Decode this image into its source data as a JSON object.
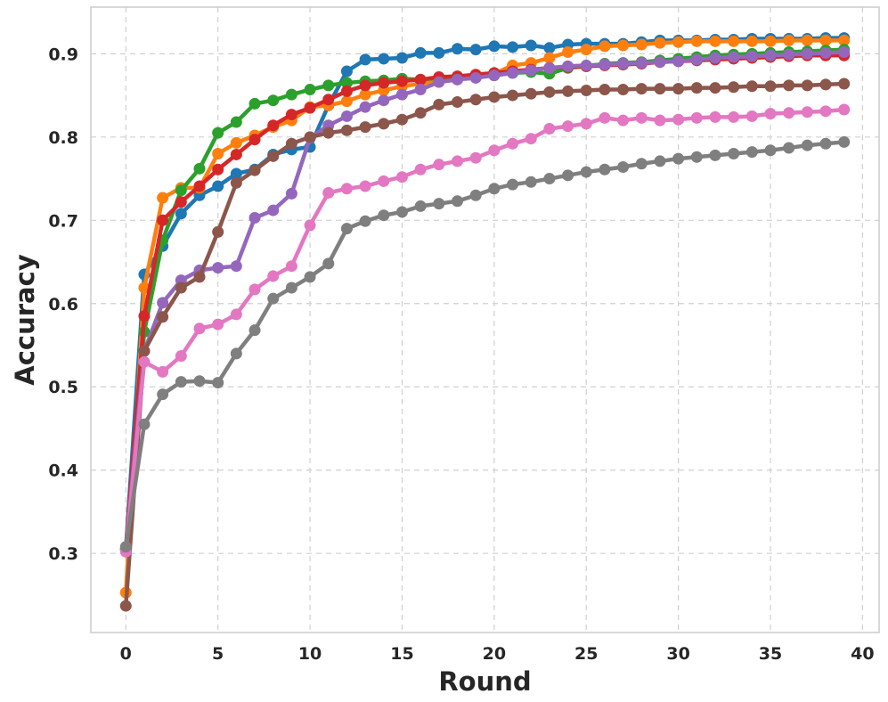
{
  "chart_data": {
    "type": "line",
    "title": "",
    "xlabel": "Round",
    "ylabel": "Accuracy",
    "xlim": [
      -1.9,
      40.9
    ],
    "ylim": [
      0.205,
      0.956
    ],
    "xticks": [
      0,
      5,
      10,
      15,
      20,
      25,
      30,
      35,
      40
    ],
    "yticks": [
      0.3,
      0.4,
      0.5,
      0.6,
      0.7,
      0.8,
      0.9
    ],
    "xtick_labels": [
      "0",
      "5",
      "10",
      "15",
      "20",
      "25",
      "30",
      "35",
      "40"
    ],
    "ytick_labels": [
      "0.3",
      "0.4",
      "0.5",
      "0.6",
      "0.7",
      "0.8",
      "0.9"
    ],
    "grid": true,
    "legend": "none",
    "x": [
      0,
      1,
      2,
      3,
      4,
      5,
      6,
      7,
      8,
      9,
      10,
      11,
      12,
      13,
      14,
      15,
      16,
      17,
      18,
      19,
      20,
      21,
      22,
      23,
      24,
      25,
      26,
      27,
      28,
      29,
      30,
      31,
      32,
      33,
      34,
      35,
      36,
      37,
      38,
      39
    ],
    "series": [
      {
        "name": "series-blue",
        "color": "#1f77b4",
        "values": [
          0.305,
          0.635,
          0.669,
          0.708,
          0.73,
          0.741,
          0.756,
          0.761,
          0.779,
          0.785,
          0.788,
          0.838,
          0.879,
          0.893,
          0.894,
          0.895,
          0.901,
          0.901,
          0.906,
          0.905,
          0.909,
          0.908,
          0.91,
          0.907,
          0.911,
          0.912,
          0.912,
          0.912,
          0.914,
          0.916,
          0.916,
          0.916,
          0.917,
          0.917,
          0.918,
          0.918,
          0.918,
          0.918,
          0.919,
          0.919
        ]
      },
      {
        "name": "series-orange",
        "color": "#ff7f0e",
        "values": [
          0.253,
          0.619,
          0.727,
          0.739,
          0.739,
          0.78,
          0.793,
          0.802,
          0.812,
          0.82,
          0.836,
          0.838,
          0.843,
          0.851,
          0.856,
          0.861,
          0.864,
          0.868,
          0.869,
          0.873,
          0.876,
          0.886,
          0.889,
          0.895,
          0.902,
          0.905,
          0.909,
          0.91,
          0.911,
          0.913,
          0.914,
          0.915,
          0.915,
          0.915,
          0.915,
          0.915,
          0.916,
          0.916,
          0.916,
          0.916
        ]
      },
      {
        "name": "series-green",
        "color": "#2ca02c",
        "values": [
          0.305,
          0.566,
          0.676,
          0.736,
          0.762,
          0.805,
          0.818,
          0.84,
          0.844,
          0.851,
          0.857,
          0.862,
          0.865,
          0.867,
          0.868,
          0.87,
          0.869,
          0.871,
          0.872,
          0.872,
          0.874,
          0.877,
          0.878,
          0.876,
          0.883,
          0.885,
          0.888,
          0.889,
          0.89,
          0.892,
          0.894,
          0.896,
          0.898,
          0.899,
          0.9,
          0.901,
          0.902,
          0.903,
          0.904,
          0.905
        ]
      },
      {
        "name": "series-red",
        "color": "#d62728",
        "values": [
          0.305,
          0.585,
          0.7,
          0.722,
          0.741,
          0.761,
          0.779,
          0.797,
          0.814,
          0.827,
          0.835,
          0.845,
          0.855,
          0.862,
          0.865,
          0.867,
          0.869,
          0.872,
          0.873,
          0.875,
          0.877,
          0.879,
          0.881,
          0.883,
          0.884,
          0.885,
          0.886,
          0.887,
          0.888,
          0.89,
          0.891,
          0.892,
          0.893,
          0.894,
          0.895,
          0.896,
          0.897,
          0.898,
          0.898,
          0.898
        ]
      },
      {
        "name": "series-purple",
        "color": "#9467bd",
        "values": [
          0.305,
          0.543,
          0.601,
          0.628,
          0.64,
          0.643,
          0.645,
          0.703,
          0.712,
          0.732,
          0.799,
          0.814,
          0.825,
          0.836,
          0.844,
          0.851,
          0.857,
          0.866,
          0.869,
          0.871,
          0.874,
          0.877,
          0.88,
          0.883,
          0.885,
          0.886,
          0.887,
          0.888,
          0.889,
          0.89,
          0.891,
          0.893,
          0.895,
          0.896,
          0.897,
          0.898,
          0.899,
          0.9,
          0.901,
          0.902
        ]
      },
      {
        "name": "series-brown",
        "color": "#8c564b",
        "values": [
          0.237,
          0.543,
          0.584,
          0.619,
          0.632,
          0.686,
          0.745,
          0.76,
          0.777,
          0.792,
          0.8,
          0.805,
          0.808,
          0.812,
          0.816,
          0.821,
          0.829,
          0.839,
          0.842,
          0.845,
          0.848,
          0.85,
          0.852,
          0.854,
          0.855,
          0.856,
          0.857,
          0.857,
          0.858,
          0.858,
          0.858,
          0.859,
          0.859,
          0.86,
          0.861,
          0.861,
          0.862,
          0.862,
          0.863,
          0.864
        ]
      },
      {
        "name": "series-pink",
        "color": "#e377c2",
        "values": [
          0.302,
          0.53,
          0.518,
          0.537,
          0.57,
          0.575,
          0.587,
          0.617,
          0.633,
          0.645,
          0.694,
          0.733,
          0.738,
          0.741,
          0.747,
          0.752,
          0.761,
          0.767,
          0.771,
          0.775,
          0.784,
          0.792,
          0.798,
          0.81,
          0.813,
          0.816,
          0.823,
          0.82,
          0.823,
          0.82,
          0.821,
          0.823,
          0.824,
          0.824,
          0.825,
          0.828,
          0.829,
          0.83,
          0.831,
          0.833
        ]
      },
      {
        "name": "series-gray",
        "color": "#7f7f7f",
        "values": [
          0.308,
          0.455,
          0.491,
          0.506,
          0.507,
          0.505,
          0.54,
          0.568,
          0.606,
          0.619,
          0.632,
          0.648,
          0.69,
          0.699,
          0.706,
          0.71,
          0.717,
          0.72,
          0.723,
          0.73,
          0.738,
          0.743,
          0.746,
          0.75,
          0.754,
          0.758,
          0.761,
          0.764,
          0.768,
          0.771,
          0.774,
          0.776,
          0.778,
          0.78,
          0.782,
          0.784,
          0.787,
          0.79,
          0.792,
          0.794
        ]
      }
    ]
  }
}
